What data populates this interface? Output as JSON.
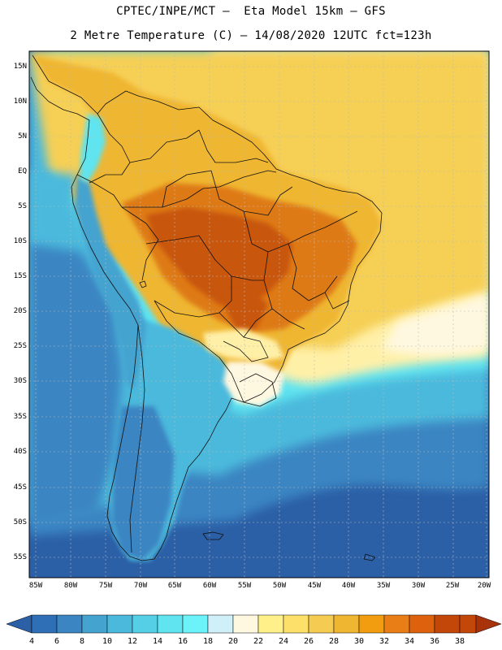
{
  "title_line1": "CPTEC/INPE/MCT –  Eta Model 15km – GFS",
  "title_line2": "2 Metre Temperature (C) – 14/08/2020 12UTC fct=123h",
  "y_ticks": [
    "15N",
    "10N",
    "5N",
    "EQ",
    "5S",
    "10S",
    "15S",
    "20S",
    "25S",
    "30S",
    "35S",
    "40S",
    "45S",
    "50S",
    "55S"
  ],
  "x_ticks": [
    "85W",
    "80W",
    "75W",
    "70W",
    "65W",
    "60W",
    "55W",
    "50W",
    "45W",
    "40W",
    "35W",
    "30W",
    "25W",
    "20W"
  ],
  "colorbar_labels": [
    "4",
    "6",
    "8",
    "10",
    "12",
    "14",
    "16",
    "18",
    "20",
    "22",
    "24",
    "26",
    "28",
    "30",
    "32",
    "34",
    "36",
    "38"
  ],
  "colorbar_colors": [
    "#2b5fa6",
    "#2f6fb5",
    "#3a85c2",
    "#45a3d0",
    "#4bb9dc",
    "#55cfe6",
    "#5fe4f0",
    "#6bf3f9",
    "#cfeff9",
    "#fff8e1",
    "#fff08a",
    "#fde06a",
    "#f6cb52",
    "#efb632",
    "#f29d10",
    "#ea7e16",
    "#de620e",
    "#c4470a",
    "#a8330a"
  ],
  "map_colors": {
    "ocean_deep": "#2b5fa6",
    "ocean_mid": "#3a85c2",
    "ocean_light": "#4bb9dc",
    "ocean_cyan": "#5fe4f0",
    "atl_yellow": "#f6cf55",
    "pale_yellow": "#fff0a8",
    "cream": "#fff8e1",
    "land_orange": "#efb632",
    "land_hot": "#de7a18",
    "land_hotter": "#c8560c",
    "andes_blue": "#45a3d0"
  }
}
